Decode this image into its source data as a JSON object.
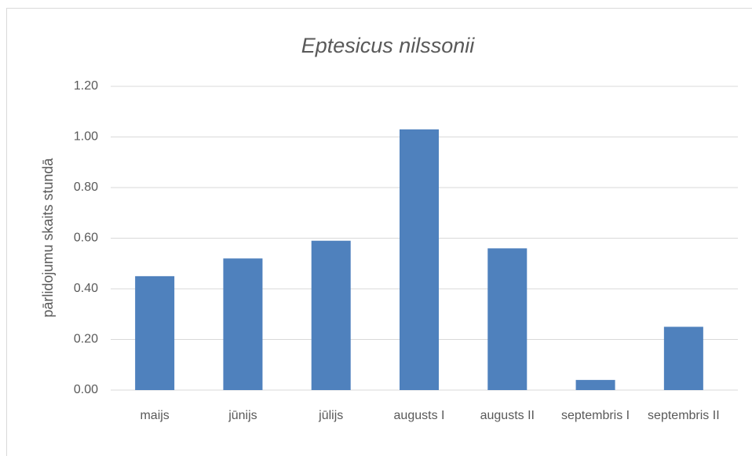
{
  "chart_data": {
    "type": "bar",
    "title": "Eptesicus nilssonii",
    "y_label": "pārlidojumu skaits stundā",
    "categories": [
      "maijs",
      "jūnijs",
      "jūlijs",
      "augusts I",
      "augusts II",
      "septembris I",
      "septembris II"
    ],
    "values": [
      0.45,
      0.52,
      0.59,
      1.03,
      0.56,
      0.04,
      0.25
    ],
    "color": "#4f81bd",
    "ylim": [
      0,
      1.2
    ],
    "yticks": [
      {
        "value": 0,
        "label": "0.00"
      },
      {
        "value": 0.2,
        "label": "0.20"
      },
      {
        "value": 0.4,
        "label": "0.40"
      },
      {
        "value": 0.6,
        "label": "0.60"
      },
      {
        "value": 0.8,
        "label": "0.80"
      },
      {
        "value": 1.0,
        "label": "1.00"
      },
      {
        "value": 1.2,
        "label": "1.20"
      }
    ],
    "grid": true
  }
}
